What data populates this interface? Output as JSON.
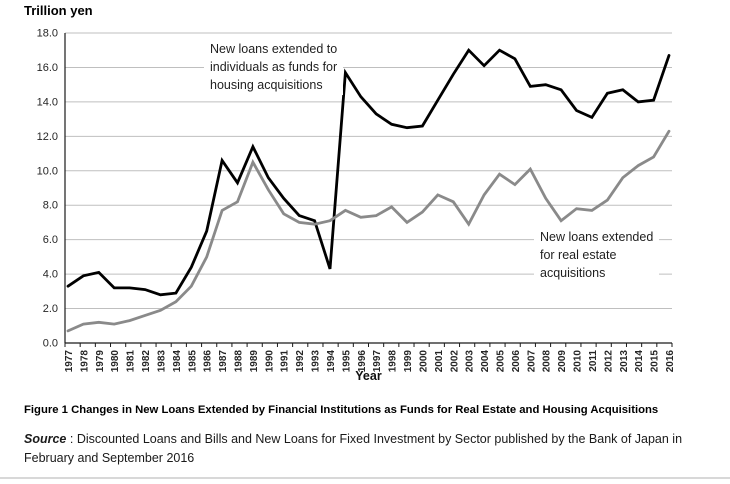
{
  "figure": {
    "caption": "Figure 1 Changes in New Loans Extended by Financial Institutions as Funds for Real Estate and Housing Acquisitions",
    "source_label": "Source",
    "source_separator": " : ",
    "source_text": "Discounted Loans and Bills and New Loans for Fixed Investment by Sector published by the Bank of Japan in February and September 2016"
  },
  "chart_data": {
    "type": "line",
    "unit_label": "Trillion yen",
    "xlabel": "Year",
    "ylabel": "",
    "ylim": [
      0,
      18
    ],
    "ytick_step": 2,
    "grid": true,
    "legend_position": "inline-annotations",
    "colors": {
      "housing_line": "#000000",
      "real_estate_line": "#8a8a8a",
      "gridline": "#bfbfbf",
      "axis": "#1a1a1a",
      "tick_text": "#262626"
    },
    "x": [
      1977,
      1978,
      1979,
      1980,
      1981,
      1982,
      1983,
      1984,
      1985,
      1986,
      1987,
      1988,
      1989,
      1990,
      1991,
      1992,
      1993,
      1994,
      1995,
      1996,
      1997,
      1998,
      1999,
      2000,
      2001,
      2002,
      2003,
      2004,
      2005,
      2006,
      2007,
      2008,
      2009,
      2010,
      2011,
      2012,
      2013,
      2014,
      2015,
      2016
    ],
    "series": [
      {
        "id": "housing",
        "name": "New loans extended to individuals as funds for housing acquisitions",
        "color": "#000000",
        "stroke_width": 2.8,
        "values": [
          3.3,
          3.9,
          4.1,
          3.2,
          3.2,
          3.1,
          2.8,
          2.9,
          4.4,
          6.5,
          10.6,
          9.3,
          11.4,
          9.6,
          8.4,
          7.4,
          7.1,
          4.3,
          15.7,
          14.3,
          13.3,
          12.7,
          12.5,
          12.6,
          14.1,
          15.6,
          17.0,
          16.1,
          17.0,
          16.5,
          14.9,
          15.0,
          14.7,
          13.5,
          13.1,
          14.5,
          14.7,
          14.0,
          14.1,
          16.7
        ]
      },
      {
        "id": "real_estate",
        "name": "New loans extended for real estate acquisitions",
        "color": "#8a8a8a",
        "stroke_width": 2.8,
        "values": [
          0.7,
          1.1,
          1.2,
          1.1,
          1.3,
          1.6,
          1.9,
          2.4,
          3.3,
          5.0,
          7.7,
          8.2,
          10.5,
          8.9,
          7.5,
          7.0,
          6.9,
          7.1,
          7.7,
          7.3,
          7.4,
          7.9,
          7.0,
          7.6,
          8.6,
          8.2,
          6.9,
          8.6,
          9.8,
          9.2,
          10.1,
          8.4,
          7.1,
          7.8,
          7.7,
          8.3,
          9.6,
          10.3,
          10.8,
          12.3
        ]
      }
    ],
    "annotations": [
      {
        "id": "housing",
        "text": "New loans extended to\nindividuals as funds for\nhousing acquisitions"
      },
      {
        "id": "real_estate",
        "text": "New loans extended\nfor real estate\nacquisitions"
      }
    ]
  }
}
